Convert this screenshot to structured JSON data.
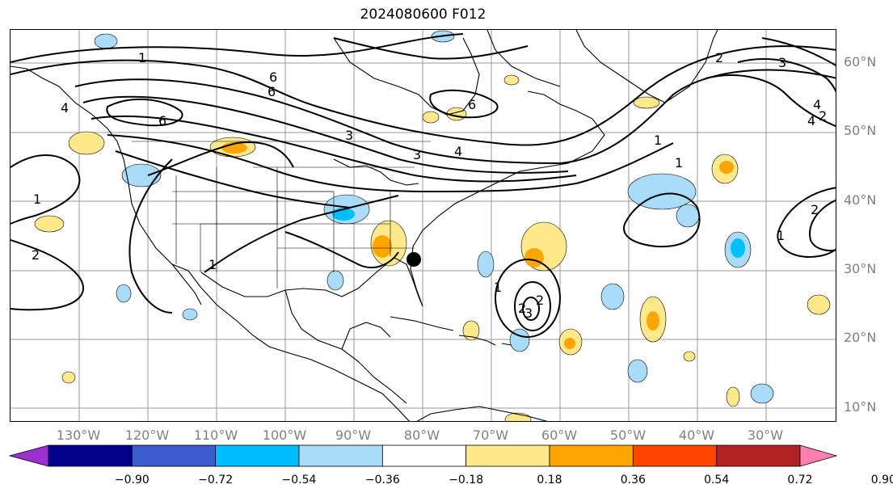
{
  "title": "2024080600 F012",
  "lat_labels": [
    "60°N",
    "50°N",
    "40°N",
    "30°N",
    "20°N",
    "10°N"
  ],
  "lon_labels": [
    "130°W",
    "120°W",
    "110°W",
    "100°W",
    "90°W",
    "80°W",
    "70°W",
    "60°W",
    "50°W",
    "40°W",
    "30°W"
  ],
  "colorbar": {
    "ticks": [
      "−0.90",
      "−0.72",
      "−0.54",
      "−0.36",
      "−0.18",
      "0.18",
      "0.36",
      "0.54",
      "0.72",
      "0.90"
    ],
    "colors": [
      "#9b30d0",
      "#00008b",
      "#3a5ccc",
      "#00bfff",
      "#a8dcf8",
      "#ffffff",
      "#ffe98a",
      "#ffa500",
      "#ff4500",
      "#b22222",
      "#ff80b0"
    ]
  },
  "contour_labels": [
    "1",
    "6",
    "4",
    "6",
    "2",
    "3",
    "4",
    "6",
    "3",
    "4",
    "3",
    "2",
    "1",
    "1",
    "1",
    "6",
    "4",
    "2",
    "2",
    "1",
    "1",
    "2",
    "1",
    "2",
    "3",
    "2",
    "1",
    "2"
  ],
  "marker": {
    "label": "",
    "lat": 31.7,
    "lon": -80.7
  },
  "colors": {
    "contour": "#000000",
    "grid": "#9a9a9a",
    "coast": "#000000"
  }
}
